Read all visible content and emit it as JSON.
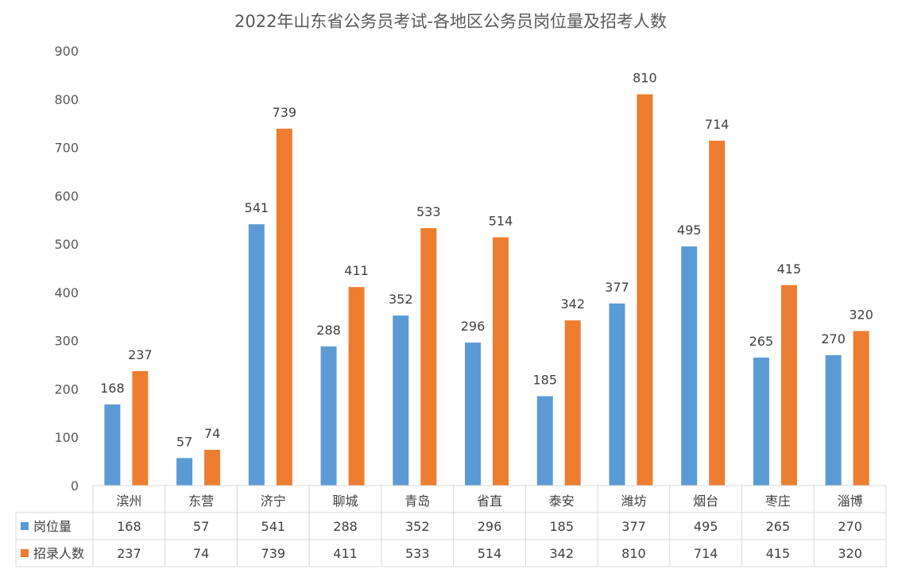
{
  "chart_data": {
    "type": "bar",
    "title": "2022年山东省公务员考试-各地区公务员岗位量及招考人数",
    "categories": [
      "滨州",
      "东营",
      "济宁",
      "聊城",
      "青岛",
      "省直",
      "泰安",
      "潍坊",
      "烟台",
      "枣庄",
      "淄博"
    ],
    "series": [
      {
        "name": "岗位量",
        "color": "#5b9bd5",
        "values": [
          168,
          57,
          541,
          288,
          352,
          296,
          185,
          377,
          495,
          265,
          270
        ]
      },
      {
        "name": "招录人数",
        "color": "#ed7d31",
        "values": [
          237,
          74,
          739,
          411,
          533,
          514,
          342,
          810,
          714,
          415,
          320
        ]
      }
    ],
    "ylim": [
      0,
      900
    ],
    "yticks": [
      0,
      100,
      200,
      300,
      400,
      500,
      600,
      700,
      800,
      900
    ],
    "gridlines": false,
    "legend": "data-table",
    "data_table": true
  }
}
